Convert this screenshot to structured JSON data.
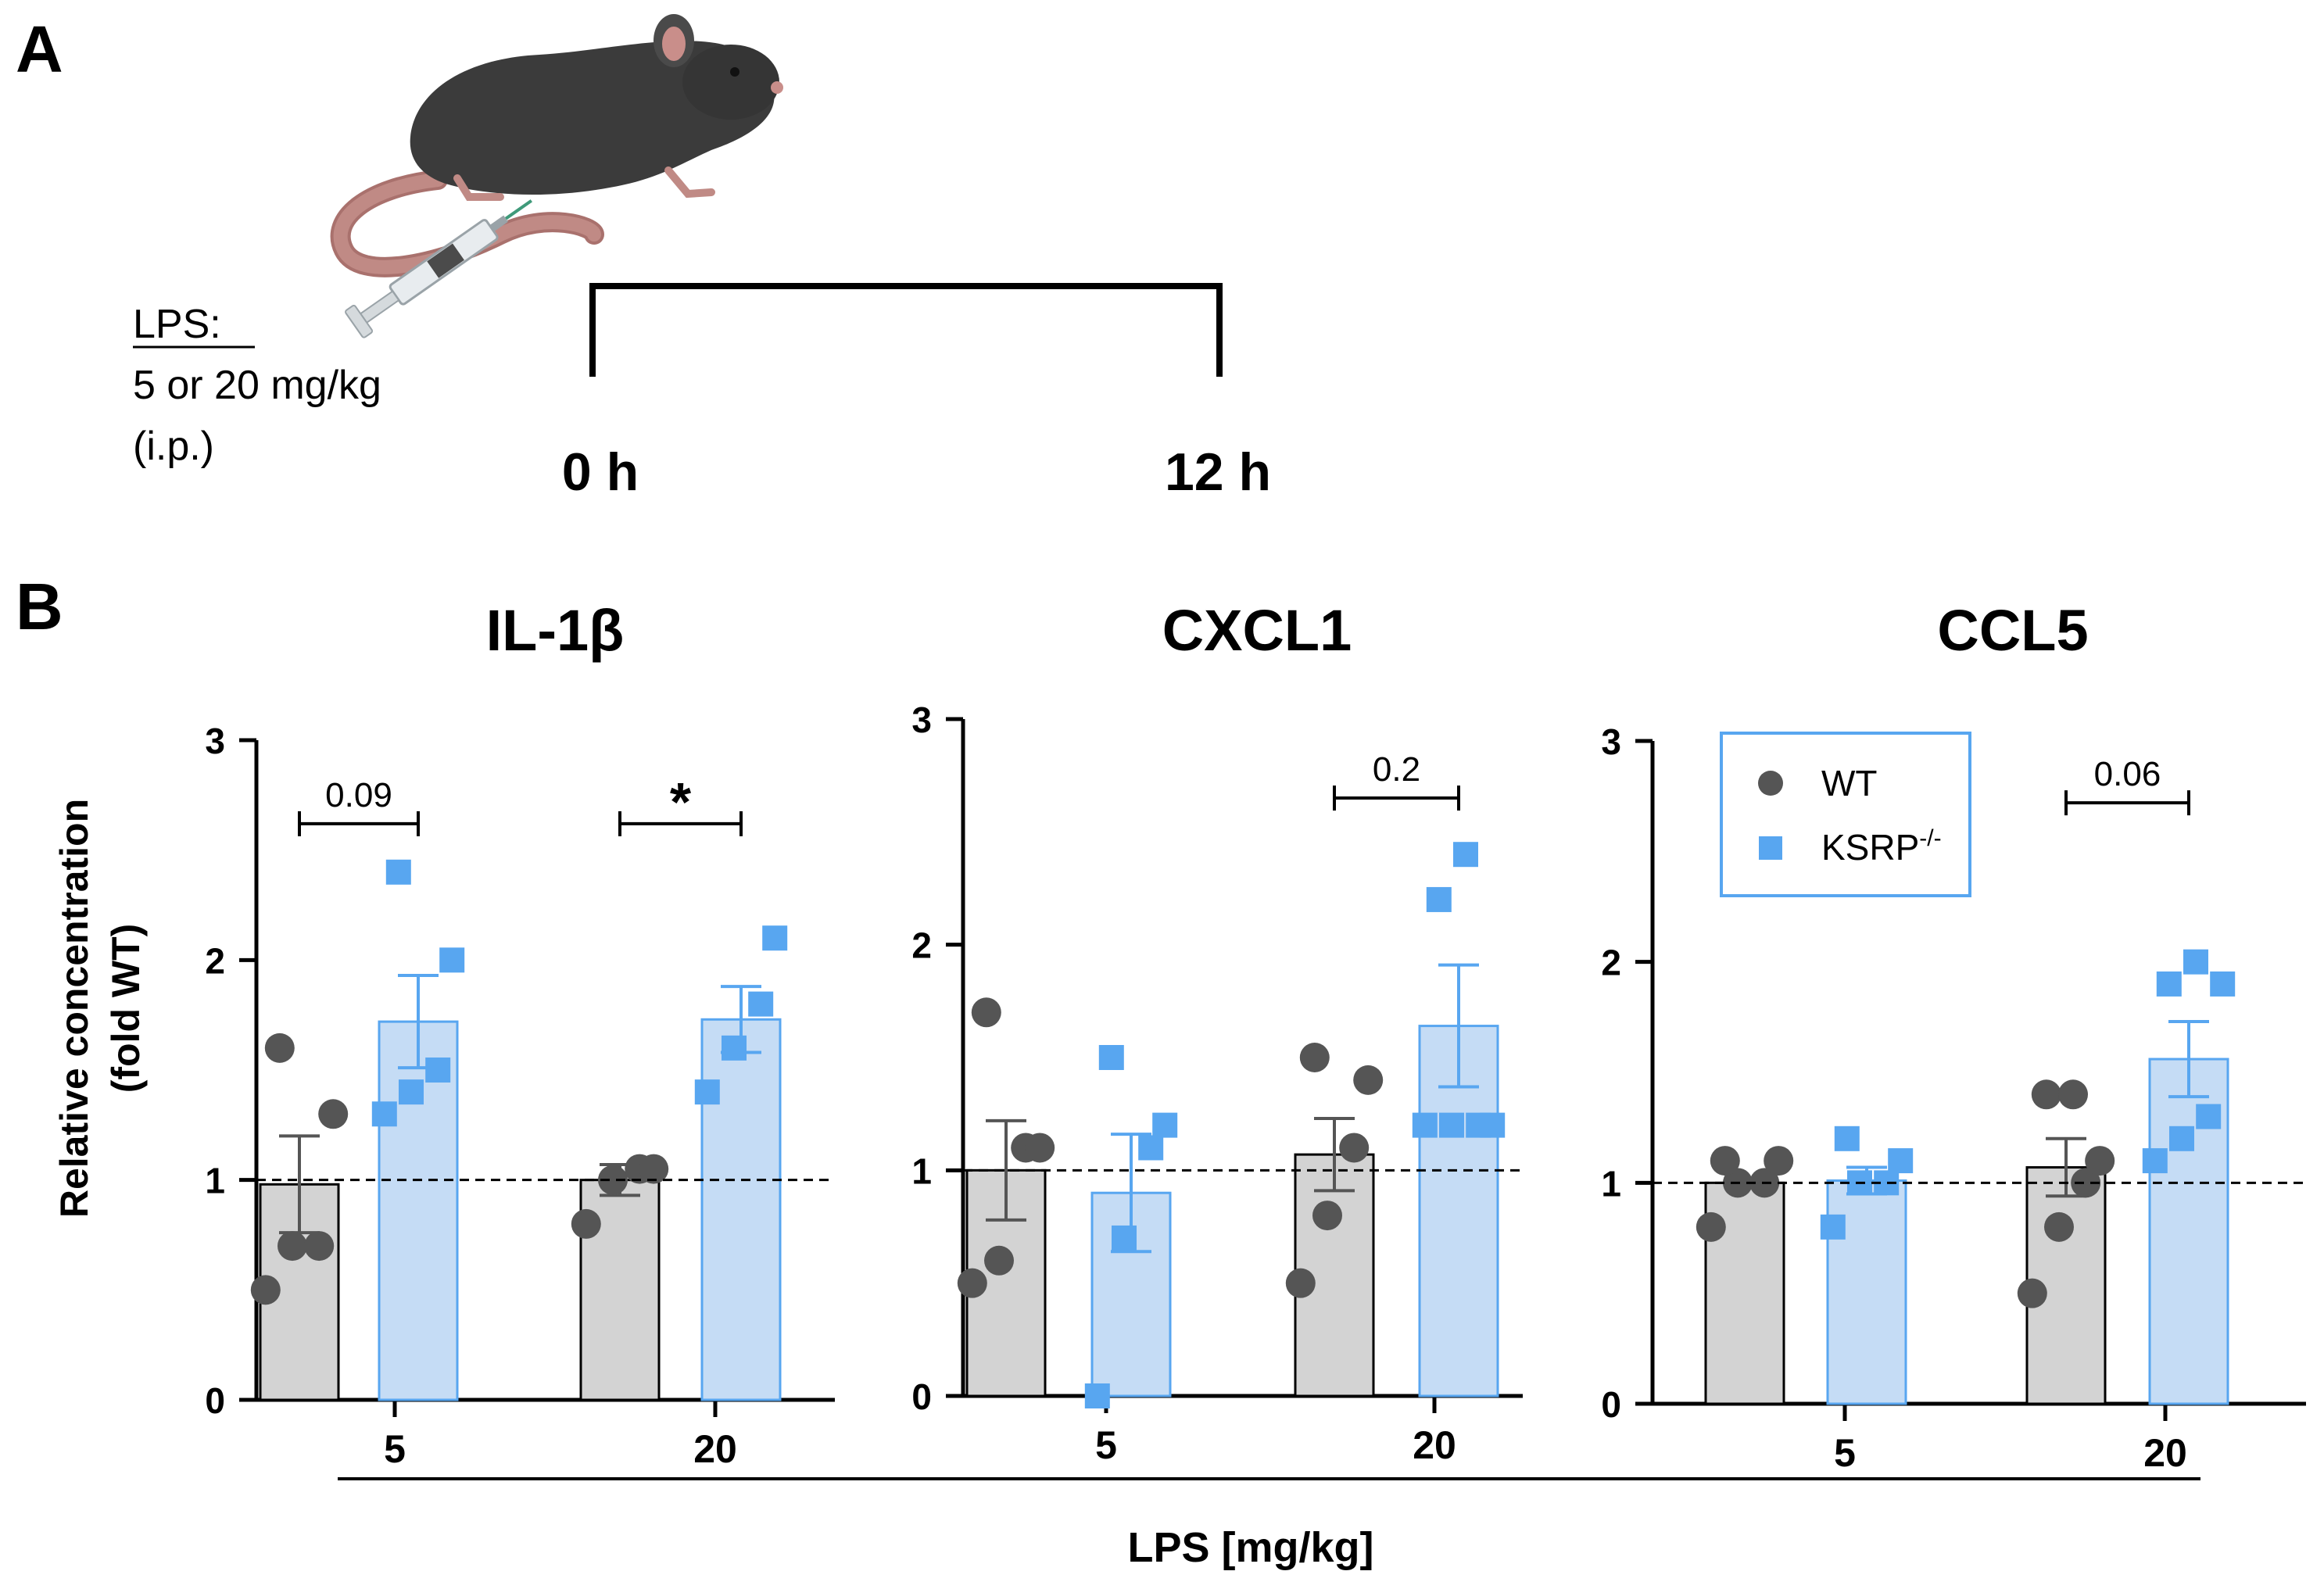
{
  "panel_a": {
    "label": "A",
    "lps_title": "LPS:",
    "lps_dose": "5 or 20 mg/kg",
    "lps_route": "(i.p.)",
    "time_start": "0 h",
    "time_end": "12 h"
  },
  "panel_b": {
    "label": "B",
    "ylabel_line1": "Relative concentration",
    "ylabel_line2": "(fold WT)",
    "xlabel": "LPS [mg/kg]"
  },
  "legend": {
    "wt": "WT",
    "ko": "KSRP",
    "ko_sup": "-/-"
  },
  "colors": {
    "wt_bar": "#d3d3d3",
    "wt_point": "#555555",
    "ko_bar": "#c5dcf5",
    "ko_point": "#58a6f0",
    "ko_edge": "#58a6f0",
    "mouse_body": "#3b3b3b",
    "mouse_tail": "#c08a85"
  },
  "chart_data": [
    {
      "type": "bar",
      "title": "IL-1β",
      "categories": [
        "5",
        "20"
      ],
      "ylim": [
        0,
        3
      ],
      "yticks": [
        "0",
        "1",
        "2",
        "3"
      ],
      "reference_line": 1,
      "series": [
        {
          "name": "WT",
          "values": [
            0.98,
            1.0
          ],
          "sem": [
            0.22,
            0.07
          ],
          "points": [
            [
              0.5,
              0.7,
              0.7,
              1.3,
              1.6
            ],
            [
              0.8,
              1.0,
              1.05,
              1.05
            ]
          ]
        },
        {
          "name": "KSRP-/-",
          "values": [
            1.72,
            1.73
          ],
          "sem": [
            0.21,
            0.15
          ],
          "points": [
            [
              1.3,
              1.4,
              1.5,
              2.0,
              2.4
            ],
            [
              1.4,
              1.6,
              1.8,
              2.1
            ]
          ]
        }
      ],
      "brackets": [
        {
          "group": 0,
          "label": "0.09",
          "y": 2.62
        },
        {
          "group": 1,
          "label": "*",
          "y": 2.62
        }
      ]
    },
    {
      "type": "bar",
      "title": "CXCL1",
      "categories": [
        "5",
        "20"
      ],
      "ylim": [
        0,
        3
      ],
      "yticks": [
        "0",
        "1",
        "2",
        "3"
      ],
      "reference_line": 1,
      "series": [
        {
          "name": "WT",
          "values": [
            1.0,
            1.07
          ],
          "sem": [
            0.22,
            0.16
          ],
          "points": [
            [
              0.5,
              0.6,
              1.1,
              1.1,
              1.7
            ],
            [
              0.5,
              0.8,
              1.1,
              1.4,
              1.5
            ]
          ]
        },
        {
          "name": "KSRP-/-",
          "values": [
            0.9,
            1.64
          ],
          "sem": [
            0.26,
            0.27
          ],
          "points": [
            [
              0.0,
              0.7,
              1.1,
              1.2,
              1.5
            ],
            [
              1.2,
              1.2,
              1.2,
              1.2,
              2.2,
              2.4
            ]
          ]
        }
      ],
      "brackets": [
        {
          "group": 1,
          "label": "0.2",
          "y": 2.65
        }
      ]
    },
    {
      "type": "bar",
      "title": "CCL5",
      "categories": [
        "5",
        "20"
      ],
      "ylim": [
        0,
        3
      ],
      "yticks": [
        "0",
        "1",
        "2",
        "3"
      ],
      "reference_line": 1,
      "series": [
        {
          "name": "WT",
          "values": [
            1.0,
            1.07
          ],
          "sem": [
            0.02,
            0.13
          ],
          "points": [
            [
              0.8,
              1.0,
              1.0,
              1.1,
              1.1
            ],
            [
              0.5,
              0.8,
              1.0,
              1.1,
              1.4,
              1.4
            ]
          ]
        },
        {
          "name": "KSRP-/-",
          "values": [
            1.01,
            1.56
          ],
          "sem": [
            0.06,
            0.17
          ],
          "points": [
            [
              0.8,
              1.0,
              1.0,
              1.1,
              1.2
            ],
            [
              1.1,
              1.2,
              1.3,
              1.9,
              1.9,
              2.0
            ]
          ]
        }
      ],
      "brackets": [
        {
          "group": 1,
          "label": "0.06",
          "y": 2.72
        }
      ]
    }
  ]
}
